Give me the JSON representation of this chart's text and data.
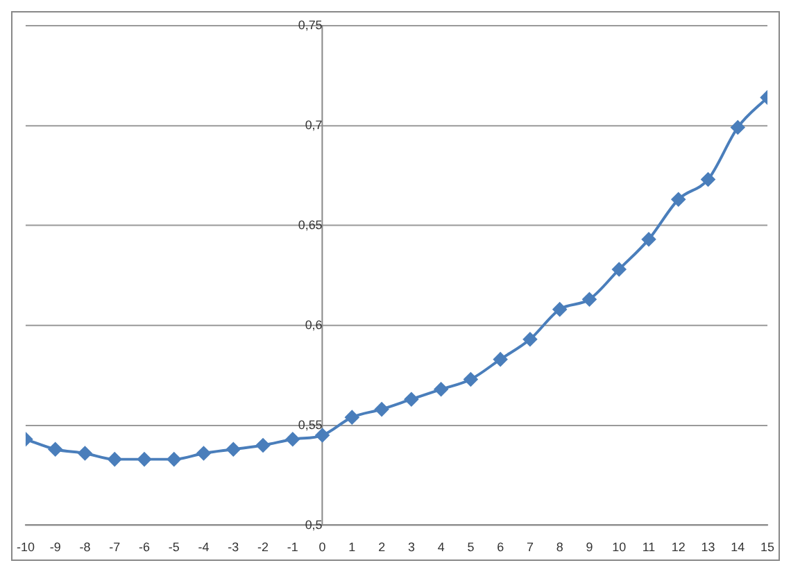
{
  "chart_data": {
    "type": "line",
    "x": [
      -10,
      -9,
      -8,
      -7,
      -6,
      -5,
      -4,
      -3,
      -2,
      -1,
      0,
      1,
      2,
      3,
      4,
      5,
      6,
      7,
      8,
      9,
      10,
      11,
      12,
      13,
      14,
      15
    ],
    "series": [
      {
        "color": "#4a7ebb",
        "values": [
          0.543,
          0.538,
          0.536,
          0.533,
          0.533,
          0.533,
          0.536,
          0.538,
          0.54,
          0.543,
          0.545,
          0.554,
          0.558,
          0.563,
          0.568,
          0.573,
          0.583,
          0.593,
          0.608,
          0.613,
          0.628,
          0.643,
          0.663,
          0.673,
          0.699,
          0.714
        ]
      }
    ],
    "xlim": [
      -10,
      15
    ],
    "xticks": [
      -10,
      -9,
      -8,
      -7,
      -6,
      -5,
      -4,
      -3,
      -2,
      -1,
      0,
      1,
      2,
      3,
      4,
      5,
      6,
      7,
      8,
      9,
      10,
      11,
      12,
      13,
      14,
      15
    ],
    "ylim": [
      0.5,
      0.75
    ],
    "yticks": [
      {
        "value": 0.5,
        "label": "0,5"
      },
      {
        "value": 0.55,
        "label": "0,55"
      },
      {
        "value": 0.6,
        "label": "0,6"
      },
      {
        "value": 0.65,
        "label": "0,65"
      },
      {
        "value": 0.7,
        "label": "0,7"
      },
      {
        "value": 0.75,
        "label": "0,75"
      }
    ],
    "grid": "y",
    "legend": false,
    "marker": "diamond",
    "line_style": "solid"
  }
}
